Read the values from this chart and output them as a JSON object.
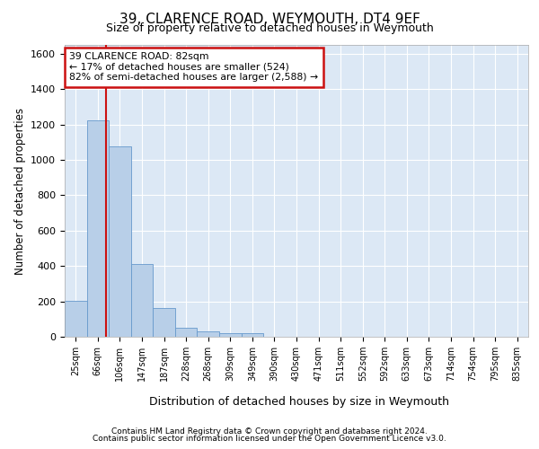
{
  "title": "39, CLARENCE ROAD, WEYMOUTH, DT4 9EF",
  "subtitle": "Size of property relative to detached houses in Weymouth",
  "xlabel": "Distribution of detached houses by size in Weymouth",
  "ylabel": "Number of detached properties",
  "footer1": "Contains HM Land Registry data © Crown copyright and database right 2024.",
  "footer2": "Contains public sector information licensed under the Open Government Licence v3.0.",
  "annotation_line1": "39 CLARENCE ROAD: 82sqm",
  "annotation_line2": "← 17% of detached houses are smaller (524)",
  "annotation_line3": "82% of semi-detached houses are larger (2,588) →",
  "bar_color": "#b8cfe8",
  "bar_edge_color": "#6699cc",
  "background_color": "#dce8f5",
  "grid_color": "#ffffff",
  "red_line_color": "#cc1111",
  "ann_box_color": "#cc1111",
  "categories": [
    "25sqm",
    "66sqm",
    "106sqm",
    "147sqm",
    "187sqm",
    "228sqm",
    "268sqm",
    "309sqm",
    "349sqm",
    "390sqm",
    "430sqm",
    "471sqm",
    "511sqm",
    "552sqm",
    "592sqm",
    "633sqm",
    "673sqm",
    "714sqm",
    "754sqm",
    "795sqm",
    "835sqm"
  ],
  "values": [
    205,
    1225,
    1075,
    410,
    160,
    50,
    28,
    22,
    18,
    0,
    0,
    0,
    0,
    0,
    0,
    0,
    0,
    0,
    0,
    0,
    0
  ],
  "ylim": [
    0,
    1650
  ],
  "yticks": [
    0,
    200,
    400,
    600,
    800,
    1000,
    1200,
    1400,
    1600
  ],
  "red_line_x": 1.38
}
